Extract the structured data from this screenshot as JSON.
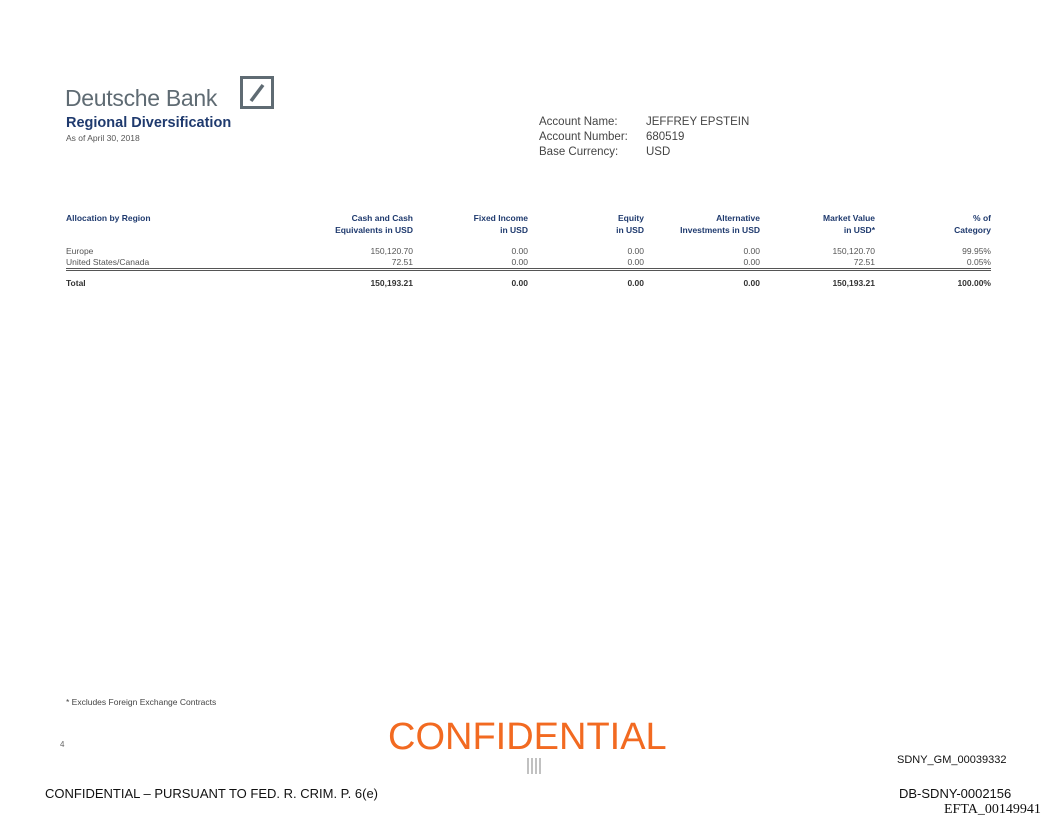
{
  "header": {
    "logo_text": "Deutsche Bank",
    "title": "Regional Diversification",
    "as_of": "As of April 30, 2018"
  },
  "account": {
    "name_label": "Account Name:",
    "name": "JEFFREY EPSTEIN",
    "number_label": "Account Number:",
    "number": "680519",
    "currency_label": "Base Currency:",
    "currency": "USD"
  },
  "table": {
    "headers": [
      [
        "Allocation by Region",
        ""
      ],
      [
        "Cash and Cash",
        "Equivalents in USD"
      ],
      [
        "Fixed Income",
        "in USD"
      ],
      [
        "Equity",
        "in USD"
      ],
      [
        "Alternative",
        "Investments in USD"
      ],
      [
        "Market Value",
        "in USD*"
      ],
      [
        "% of",
        "Category"
      ]
    ],
    "rows": [
      [
        "Europe",
        "150,120.70",
        "0.00",
        "0.00",
        "0.00",
        "150,120.70",
        "99.95%"
      ],
      [
        "United States/Canada",
        "72.51",
        "0.00",
        "0.00",
        "0.00",
        "72.51",
        "0.05%"
      ]
    ],
    "total": [
      "Total",
      "150,193.21",
      "0.00",
      "0.00",
      "0.00",
      "150,193.21",
      "100.00%"
    ]
  },
  "footnote": "*  Excludes Foreign Exchange Contracts",
  "page_number": "4",
  "stamp": "CONFIDENTIAL",
  "bates": {
    "sdny": "SDNY_GM_00039332",
    "confidential_notice": "CONFIDENTIAL – PURSUANT TO FED. R. CRIM. P. 6(e)",
    "db": "DB-SDNY-0002156",
    "efta": "EFTA_00149941"
  }
}
